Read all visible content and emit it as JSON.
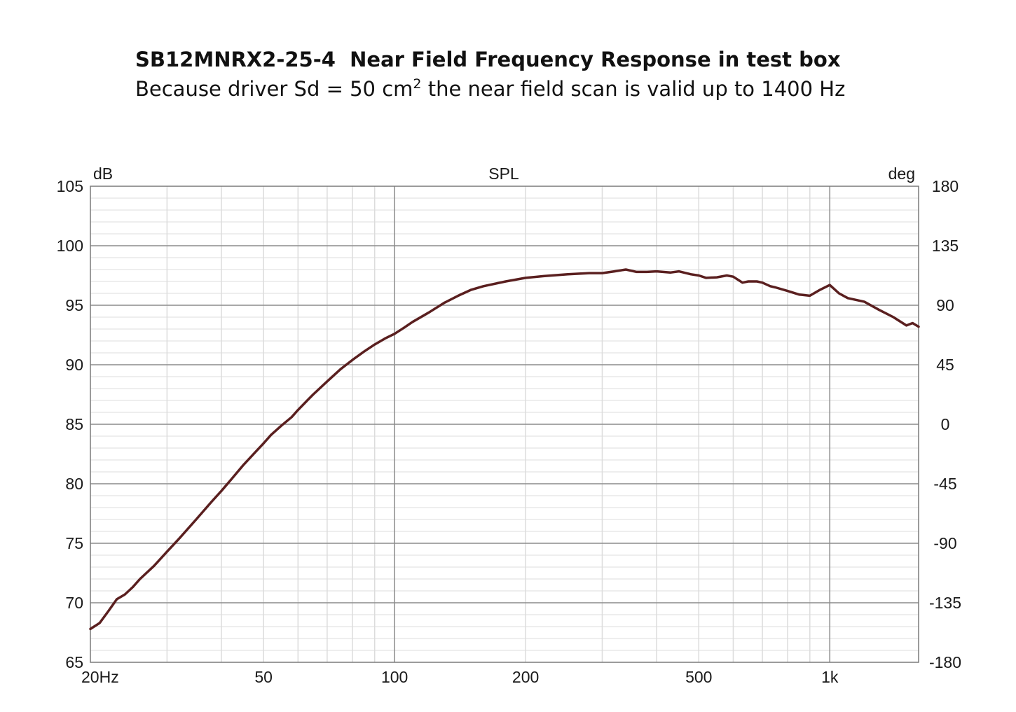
{
  "title": "SB12MNRX2-25-4  Near Field Frequency Response in test box",
  "subtitle": {
    "prefix": "Because driver Sd = 50 cm",
    "superscript": "2",
    "suffix": " the near field scan is valid up to 1400 Hz"
  },
  "chart_data": {
    "type": "line",
    "title": "SPL",
    "ylabel": "dB",
    "y2label": "deg",
    "xscale": "log",
    "xlim": [
      20,
      1600
    ],
    "ylim": [
      65,
      105
    ],
    "y2lim": [
      -180,
      180
    ],
    "grid": true,
    "x_ticks": [
      {
        "value": 20,
        "label": "20Hz"
      },
      {
        "value": 50,
        "label": "50"
      },
      {
        "value": 100,
        "label": "100"
      },
      {
        "value": 200,
        "label": "200"
      },
      {
        "value": 500,
        "label": "500"
      },
      {
        "value": 1000,
        "label": "1k"
      }
    ],
    "y_ticks": [
      {
        "value": 65,
        "label": "65"
      },
      {
        "value": 70,
        "label": "70"
      },
      {
        "value": 75,
        "label": "75"
      },
      {
        "value": 80,
        "label": "80"
      },
      {
        "value": 85,
        "label": "85"
      },
      {
        "value": 90,
        "label": "90"
      },
      {
        "value": 95,
        "label": "95"
      },
      {
        "value": 100,
        "label": "100"
      },
      {
        "value": 105,
        "label": "105"
      }
    ],
    "y2_ticks": [
      {
        "value": -180,
        "label": "-180"
      },
      {
        "value": -135,
        "label": "-135"
      },
      {
        "value": -90,
        "label": "-90"
      },
      {
        "value": -45,
        "label": "-45"
      },
      {
        "value": 0,
        "label": "0"
      },
      {
        "value": 45,
        "label": "45"
      },
      {
        "value": 90,
        "label": "90"
      },
      {
        "value": 135,
        "label": "135"
      },
      {
        "value": 180,
        "label": "180"
      }
    ],
    "series": [
      {
        "color": "#5a1f1f",
        "x": [
          20,
          21,
          22,
          23,
          24,
          25,
          26,
          28,
          30,
          32,
          35,
          38,
          40,
          42,
          45,
          48,
          50,
          52,
          55,
          58,
          60,
          63,
          65,
          70,
          75,
          80,
          85,
          90,
          95,
          100,
          105,
          110,
          120,
          130,
          140,
          150,
          160,
          180,
          200,
          220,
          250,
          280,
          300,
          320,
          340,
          360,
          380,
          400,
          430,
          450,
          480,
          500,
          520,
          550,
          580,
          600,
          630,
          650,
          680,
          700,
          730,
          750,
          800,
          850,
          900,
          950,
          1000,
          1050,
          1100,
          1200,
          1300,
          1400,
          1500,
          1550,
          1600
        ],
        "y": [
          67.8,
          68.3,
          69.3,
          70.3,
          70.7,
          71.3,
          72.0,
          73.1,
          74.3,
          75.4,
          77.0,
          78.5,
          79.4,
          80.3,
          81.6,
          82.7,
          83.4,
          84.1,
          84.9,
          85.6,
          86.2,
          87.0,
          87.5,
          88.6,
          89.6,
          90.4,
          91.1,
          91.7,
          92.2,
          92.6,
          93.1,
          93.6,
          94.4,
          95.2,
          95.8,
          96.3,
          96.6,
          97.0,
          97.3,
          97.45,
          97.6,
          97.7,
          97.7,
          97.85,
          98.0,
          97.8,
          97.8,
          97.85,
          97.75,
          97.85,
          97.6,
          97.5,
          97.3,
          97.35,
          97.5,
          97.4,
          96.9,
          97.0,
          97.0,
          96.9,
          96.6,
          96.5,
          96.2,
          95.9,
          95.8,
          96.3,
          96.7,
          96.0,
          95.6,
          95.3,
          94.6,
          94.0,
          93.3,
          93.5,
          93.2
        ]
      }
    ]
  }
}
